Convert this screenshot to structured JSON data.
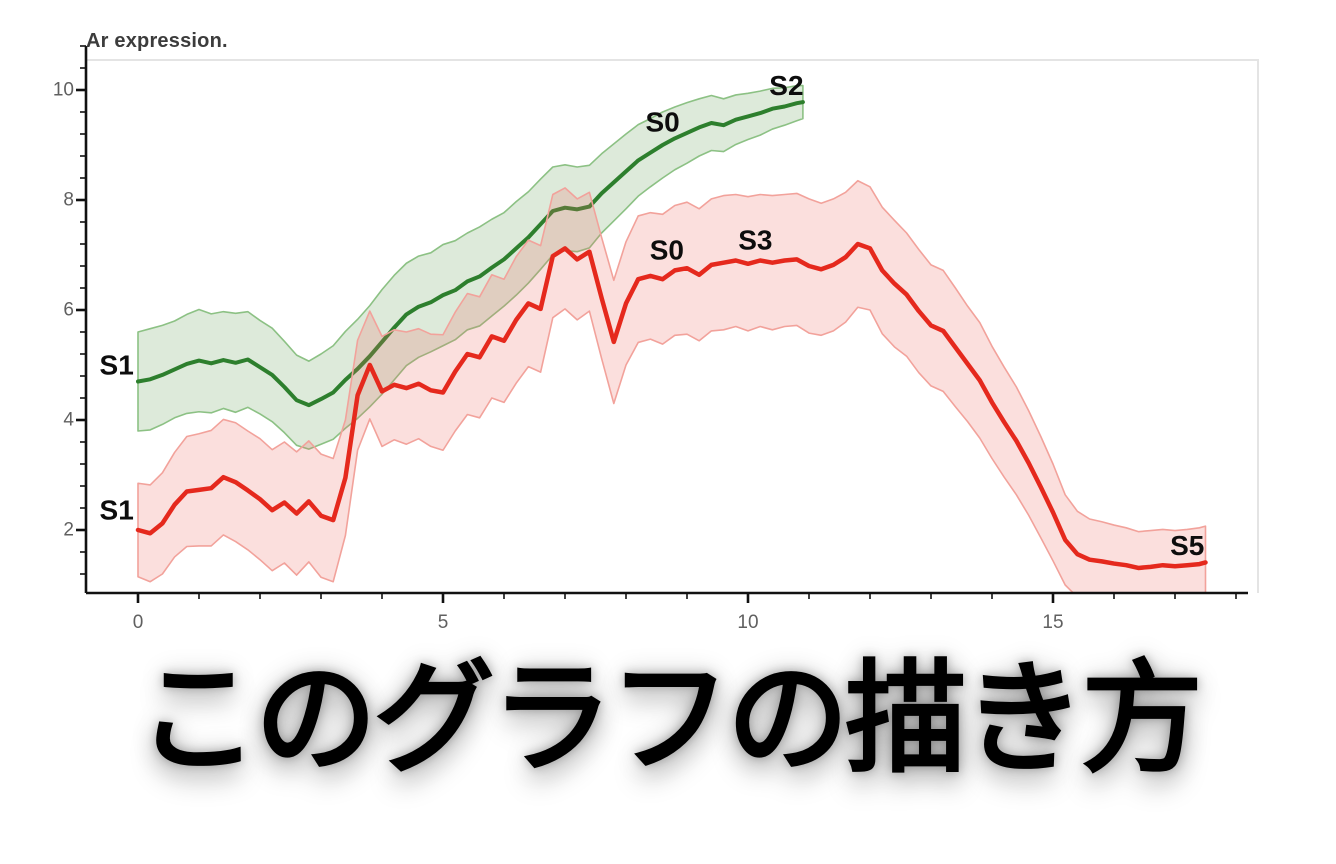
{
  "page": {
    "background": "#ffffff"
  },
  "header": {
    "title": "Ar expression."
  },
  "caption": {
    "text": "このグラフの描き方"
  },
  "chart_data": {
    "type": "line",
    "title": "Ar expression.",
    "xlabel": "",
    "ylabel": "",
    "grid": false,
    "legend": "none (inline series labels)",
    "x_axis": {
      "range": [
        -0.85,
        18.35
      ],
      "major_ticks": [
        0,
        5,
        10,
        15
      ],
      "minor_tick_step": 1,
      "minor_tick_range": [
        0,
        18
      ],
      "tick_label_color": "#606060"
    },
    "y_axis": {
      "range": [
        0.85,
        10.55
      ],
      "major_ticks": [
        2,
        4,
        6,
        8,
        10
      ],
      "minor_tick_step": 0.4,
      "minor_tick_range": [
        1.2,
        10.8
      ],
      "tick_label_color": "#606060"
    },
    "styles": {
      "axis_color": "#111111",
      "border_color": "#e4e4e4",
      "annotation_color": "#0d0d0d",
      "title_color": "#3c3c3c"
    },
    "annotations": [
      {
        "text": "S1",
        "x": -0.35,
        "y": 5.0,
        "series": "green"
      },
      {
        "text": "S1",
        "x": -0.35,
        "y": 2.36,
        "series": "red"
      },
      {
        "text": "S0",
        "x": 8.6,
        "y": 9.42,
        "series": "green"
      },
      {
        "text": "S2",
        "x": 10.63,
        "y": 10.08,
        "series": "green"
      },
      {
        "text": "S0",
        "x": 8.67,
        "y": 7.09,
        "series": "red"
      },
      {
        "text": "S3",
        "x": 10.12,
        "y": 7.27,
        "series": "red"
      },
      {
        "text": "S5",
        "x": 17.2,
        "y": 1.72,
        "series": "red"
      }
    ],
    "series": [
      {
        "name": "green",
        "line_color": "#2d7f2d",
        "band_fill": "rgba(98,160,85,0.22)",
        "band_edge": "#8cc184",
        "line_width": 4,
        "points_format": "[x, y, band_halfwidth]",
        "points": [
          [
            0,
            4.7,
            0.9
          ],
          [
            0.2,
            4.74,
            0.92
          ],
          [
            0.4,
            4.82,
            0.9
          ],
          [
            0.6,
            4.92,
            0.88
          ],
          [
            0.8,
            5.02,
            0.9
          ],
          [
            1.0,
            5.08,
            0.93
          ],
          [
            1.2,
            5.03,
            0.9
          ],
          [
            1.4,
            5.09,
            0.88
          ],
          [
            1.6,
            5.04,
            0.9
          ],
          [
            1.8,
            5.1,
            0.87
          ],
          [
            2.0,
            4.96,
            0.85
          ],
          [
            2.2,
            4.82,
            0.85
          ],
          [
            2.4,
            4.6,
            0.83
          ],
          [
            2.6,
            4.36,
            0.82
          ],
          [
            2.8,
            4.27,
            0.8
          ],
          [
            3.0,
            4.38,
            0.82
          ],
          [
            3.2,
            4.5,
            0.85
          ],
          [
            3.4,
            4.73,
            0.88
          ],
          [
            3.6,
            4.93,
            0.9
          ],
          [
            3.8,
            5.16,
            0.92
          ],
          [
            4.0,
            5.42,
            0.95
          ],
          [
            4.2,
            5.68,
            0.95
          ],
          [
            4.4,
            5.92,
            0.93
          ],
          [
            4.6,
            6.06,
            0.92
          ],
          [
            4.8,
            6.14,
            0.9
          ],
          [
            5.0,
            6.27,
            0.92
          ],
          [
            5.2,
            6.36,
            0.9
          ],
          [
            5.4,
            6.52,
            0.88
          ],
          [
            5.6,
            6.61,
            0.9
          ],
          [
            5.8,
            6.77,
            0.88
          ],
          [
            6.0,
            6.92,
            0.85
          ],
          [
            6.2,
            7.12,
            0.85
          ],
          [
            6.4,
            7.32,
            0.83
          ],
          [
            6.6,
            7.56,
            0.82
          ],
          [
            6.8,
            7.8,
            0.8
          ],
          [
            7.0,
            7.86,
            0.78
          ],
          [
            7.2,
            7.83,
            0.77
          ],
          [
            7.4,
            7.88,
            0.75
          ],
          [
            7.6,
            8.12,
            0.72
          ],
          [
            7.8,
            8.32,
            0.7
          ],
          [
            8.0,
            8.52,
            0.68
          ],
          [
            8.2,
            8.72,
            0.65
          ],
          [
            8.4,
            8.86,
            0.62
          ],
          [
            8.6,
            9.0,
            0.6
          ],
          [
            8.8,
            9.12,
            0.57
          ],
          [
            9.0,
            9.22,
            0.55
          ],
          [
            9.2,
            9.32,
            0.52
          ],
          [
            9.4,
            9.4,
            0.5
          ],
          [
            9.6,
            9.36,
            0.48
          ],
          [
            9.8,
            9.46,
            0.45
          ],
          [
            10.0,
            9.52,
            0.42
          ],
          [
            10.2,
            9.58,
            0.4
          ],
          [
            10.4,
            9.66,
            0.37
          ],
          [
            10.6,
            9.7,
            0.34
          ],
          [
            10.8,
            9.76,
            0.32
          ],
          [
            10.9,
            9.78,
            0.3
          ]
        ]
      },
      {
        "name": "red",
        "line_color": "#e5291d",
        "band_fill": "rgba(238,108,98,0.22)",
        "band_edge": "#f2a29b",
        "line_width": 4.5,
        "points_format": "[x, y, band_halfwidth]",
        "points": [
          [
            0,
            2.0,
            0.85
          ],
          [
            0.2,
            1.94,
            0.88
          ],
          [
            0.4,
            2.12,
            0.92
          ],
          [
            0.6,
            2.46,
            0.95
          ],
          [
            0.8,
            2.7,
            1.0
          ],
          [
            1.0,
            2.73,
            1.02
          ],
          [
            1.2,
            2.76,
            1.05
          ],
          [
            1.4,
            2.96,
            1.05
          ],
          [
            1.6,
            2.87,
            1.08
          ],
          [
            1.8,
            2.72,
            1.08
          ],
          [
            2.0,
            2.56,
            1.1
          ],
          [
            2.2,
            2.36,
            1.1
          ],
          [
            2.4,
            2.5,
            1.1
          ],
          [
            2.6,
            2.3,
            1.12
          ],
          [
            2.8,
            2.52,
            1.1
          ],
          [
            3.0,
            2.26,
            1.12
          ],
          [
            3.2,
            2.18,
            1.12
          ],
          [
            3.4,
            2.95,
            1.05
          ],
          [
            3.6,
            4.45,
            1.0
          ],
          [
            3.8,
            5.0,
            0.98
          ],
          [
            4.0,
            4.52,
            1.0
          ],
          [
            4.2,
            4.64,
            1.0
          ],
          [
            4.4,
            4.58,
            1.02
          ],
          [
            4.6,
            4.66,
            1.0
          ],
          [
            4.8,
            4.54,
            1.02
          ],
          [
            5.0,
            4.5,
            1.05
          ],
          [
            5.2,
            4.88,
            1.08
          ],
          [
            5.4,
            5.2,
            1.1
          ],
          [
            5.6,
            5.14,
            1.1
          ],
          [
            5.8,
            5.52,
            1.12
          ],
          [
            6.0,
            5.44,
            1.12
          ],
          [
            6.2,
            5.82,
            1.15
          ],
          [
            6.4,
            6.12,
            1.15
          ],
          [
            6.6,
            6.02,
            1.15
          ],
          [
            6.8,
            6.98,
            1.12
          ],
          [
            7.0,
            7.12,
            1.1
          ],
          [
            7.2,
            6.92,
            1.1
          ],
          [
            7.4,
            7.06,
            1.08
          ],
          [
            7.6,
            6.22,
            1.1
          ],
          [
            7.8,
            5.42,
            1.12
          ],
          [
            8.0,
            6.12,
            1.12
          ],
          [
            8.2,
            6.56,
            1.15
          ],
          [
            8.4,
            6.62,
            1.15
          ],
          [
            8.6,
            6.56,
            1.18
          ],
          [
            8.8,
            6.72,
            1.18
          ],
          [
            9.0,
            6.76,
            1.2
          ],
          [
            9.2,
            6.64,
            1.2
          ],
          [
            9.4,
            6.82,
            1.2
          ],
          [
            9.6,
            6.86,
            1.22
          ],
          [
            9.8,
            6.9,
            1.2
          ],
          [
            10.0,
            6.84,
            1.22
          ],
          [
            10.2,
            6.9,
            1.2
          ],
          [
            10.4,
            6.86,
            1.22
          ],
          [
            10.6,
            6.9,
            1.2
          ],
          [
            10.8,
            6.92,
            1.2
          ],
          [
            11.0,
            6.8,
            1.22
          ],
          [
            11.2,
            6.74,
            1.2
          ],
          [
            11.4,
            6.82,
            1.2
          ],
          [
            11.6,
            6.96,
            1.18
          ],
          [
            11.8,
            7.2,
            1.15
          ],
          [
            12.0,
            7.12,
            1.12
          ],
          [
            12.2,
            6.72,
            1.15
          ],
          [
            12.4,
            6.48,
            1.15
          ],
          [
            12.6,
            6.28,
            1.12
          ],
          [
            12.8,
            5.98,
            1.12
          ],
          [
            13.0,
            5.72,
            1.1
          ],
          [
            13.2,
            5.62,
            1.1
          ],
          [
            13.4,
            5.32,
            1.08
          ],
          [
            13.6,
            5.02,
            1.05
          ],
          [
            13.8,
            4.72,
            1.05
          ],
          [
            14.0,
            4.32,
            1.02
          ],
          [
            14.2,
            3.96,
            1.0
          ],
          [
            14.4,
            3.62,
            0.98
          ],
          [
            14.6,
            3.22,
            0.95
          ],
          [
            14.8,
            2.78,
            0.92
          ],
          [
            15.0,
            2.32,
            0.88
          ],
          [
            15.2,
            1.82,
            0.82
          ],
          [
            15.4,
            1.56,
            0.78
          ],
          [
            15.6,
            1.46,
            0.74
          ],
          [
            15.8,
            1.43,
            0.72
          ],
          [
            16.0,
            1.39,
            0.7
          ],
          [
            16.2,
            1.36,
            0.68
          ],
          [
            16.4,
            1.31,
            0.66
          ],
          [
            16.6,
            1.33,
            0.66
          ],
          [
            16.8,
            1.36,
            0.65
          ],
          [
            17.0,
            1.34,
            0.65
          ],
          [
            17.2,
            1.36,
            0.65
          ],
          [
            17.4,
            1.38,
            0.66
          ],
          [
            17.5,
            1.41,
            0.66
          ]
        ]
      }
    ]
  }
}
